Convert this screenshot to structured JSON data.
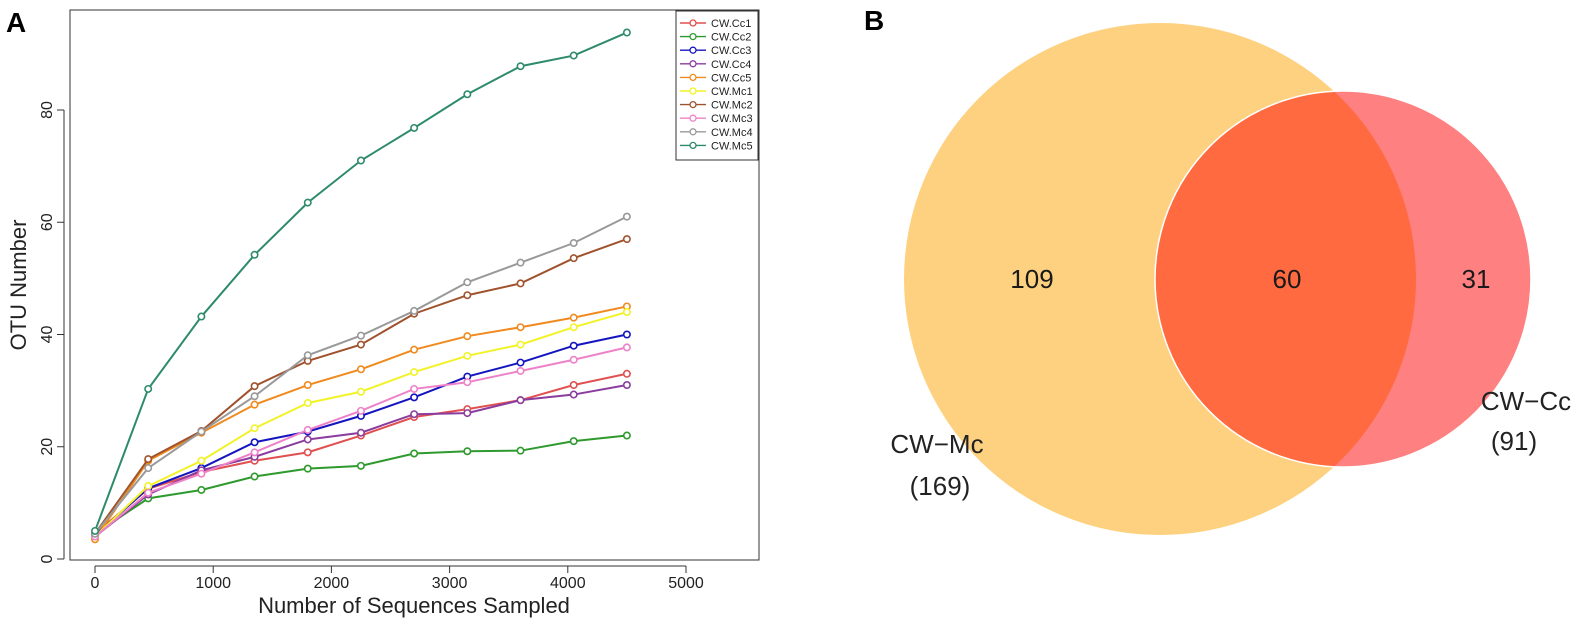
{
  "panels": {
    "a": {
      "letter": "A"
    },
    "b": {
      "letter": "B"
    }
  },
  "chart_data": [
    {
      "type": "line",
      "panel": "A",
      "title": "",
      "xlabel": "Number of Sequences Sampled",
      "ylabel": "OTU Number",
      "xlim": [
        -200,
        5600
      ],
      "ylim": [
        -2,
        98
      ],
      "xticks": [
        0,
        1000,
        2000,
        3000,
        4000,
        5000
      ],
      "yticks": [
        0,
        20,
        40,
        60,
        80
      ],
      "legend_position": "top-right",
      "x": [
        0,
        450,
        900,
        1350,
        1800,
        2250,
        2700,
        3150,
        3600,
        4050,
        4500
      ],
      "series": [
        {
          "name": "CW.Cc1",
          "color": "#e05050",
          "values": [
            4.5,
            12.5,
            15.5,
            17.5,
            19.0,
            22.0,
            25.3,
            26.7,
            28.3,
            31.0,
            33.0
          ]
        },
        {
          "name": "CW.Cc2",
          "color": "#2e9a2e",
          "values": [
            4.5,
            10.8,
            12.3,
            14.7,
            16.1,
            16.6,
            18.8,
            19.2,
            19.3,
            21.0,
            22.0
          ]
        },
        {
          "name": "CW.Cc3",
          "color": "#1515c0",
          "values": [
            4.2,
            12.6,
            16.2,
            20.8,
            22.7,
            25.5,
            28.8,
            32.5,
            35.0,
            38.0,
            40.0
          ]
        },
        {
          "name": "CW.Cc4",
          "color": "#8a3d9e",
          "values": [
            4.0,
            11.5,
            15.8,
            18.2,
            21.3,
            22.5,
            25.8,
            26.0,
            28.3,
            29.3,
            31.0
          ]
        },
        {
          "name": "CW.Cc5",
          "color": "#f08a1e",
          "values": [
            3.5,
            17.5,
            22.5,
            27.5,
            31.0,
            33.8,
            37.3,
            39.7,
            41.3,
            43.0,
            45.0
          ]
        },
        {
          "name": "CW.Mc1",
          "color": "#f2f228",
          "values": [
            4.0,
            13.0,
            17.5,
            23.3,
            27.8,
            29.8,
            33.3,
            36.2,
            38.2,
            41.3,
            44.0
          ]
        },
        {
          "name": "CW.Mc2",
          "color": "#a0522d",
          "values": [
            4.5,
            17.8,
            22.8,
            30.8,
            35.3,
            38.2,
            43.7,
            47.0,
            49.1,
            53.6,
            57.0
          ]
        },
        {
          "name": "CW.Mc3",
          "color": "#ee82c8",
          "values": [
            4.0,
            11.8,
            15.2,
            19.0,
            23.0,
            26.4,
            30.3,
            31.5,
            33.5,
            35.5,
            37.7
          ]
        },
        {
          "name": "CW.Mc4",
          "color": "#999999",
          "values": [
            4.5,
            16.2,
            22.7,
            29.0,
            36.3,
            39.8,
            44.2,
            49.3,
            52.8,
            56.3,
            61.0
          ]
        },
        {
          "name": "CW.Mc5",
          "color": "#2e8b6a",
          "values": [
            5.0,
            30.3,
            43.2,
            54.2,
            63.5,
            71.0,
            76.8,
            82.8,
            87.8,
            89.7,
            93.8
          ]
        }
      ]
    },
    {
      "type": "venn",
      "panel": "B",
      "sets": [
        {
          "name": "CW−Mc",
          "total_label": "(169)",
          "total": 169,
          "color": "#fdd17f"
        },
        {
          "name": "CW−Cc",
          "total_label": "(91)",
          "total": 91,
          "color": "#fe8080"
        }
      ],
      "regions": {
        "mc_only": 109,
        "overlap": 60,
        "cc_only": 31
      },
      "overlap_color": "#ff6a40"
    }
  ]
}
